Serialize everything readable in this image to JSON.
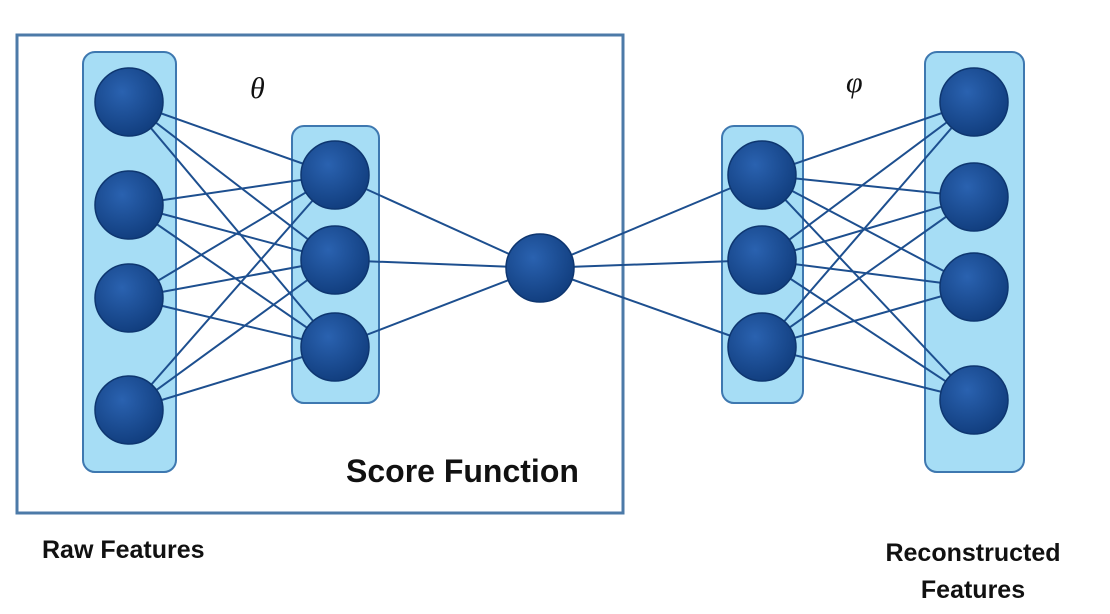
{
  "labels": {
    "theta": "θ",
    "phi": "φ",
    "score_function": "Score Function",
    "raw_features": "Raw Features",
    "reconstructed_line1": "Reconstructed",
    "reconstructed_line2": "Features"
  },
  "layers": [
    {
      "name": "raw-features",
      "nodes": 4
    },
    {
      "name": "hidden-encoder",
      "nodes": 3
    },
    {
      "name": "score",
      "nodes": 1
    },
    {
      "name": "hidden-decoder",
      "nodes": 3
    },
    {
      "name": "reconstructed-features",
      "nodes": 4
    }
  ],
  "colors": {
    "node": "#1a4e96",
    "layer_fill": "#a6ddf5",
    "layer_stroke": "#3e78b0",
    "edge": "#1d4f8f",
    "frame": "#4c7aa8"
  }
}
